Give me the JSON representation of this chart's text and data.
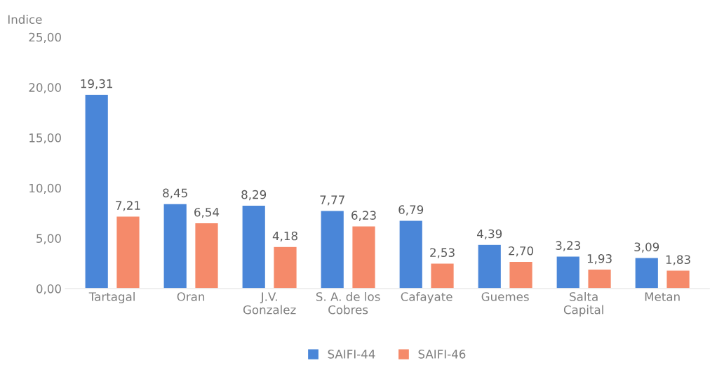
{
  "chart_data": {
    "type": "bar",
    "ylabel": "Indice",
    "categories": [
      "Tartagal",
      "Oran",
      "J.V.\nGonzalez",
      "S. A. de los\nCobres",
      "Cafayate",
      "Guemes",
      "Salta\nCapital",
      "Metan"
    ],
    "series": [
      {
        "name": "SAIFI-44",
        "color": "#4a86d8",
        "values": [
          19.31,
          8.45,
          8.29,
          7.77,
          6.79,
          4.39,
          3.23,
          3.09
        ],
        "value_labels": [
          "19,31",
          "8,45",
          "8,29",
          "7,77",
          "6,79",
          "4,39",
          "3,23",
          "3,09"
        ]
      },
      {
        "name": "SAIFI-46",
        "color": "#f58a6a",
        "values": [
          7.21,
          6.54,
          4.18,
          6.23,
          2.53,
          2.7,
          1.93,
          1.83
        ],
        "value_labels": [
          "7,21",
          "6,54",
          "4,18",
          "6,23",
          "2,53",
          "2,70",
          "1,93",
          "1,83"
        ]
      }
    ],
    "ylim": [
      0,
      25
    ],
    "yticks": [
      {
        "value": 0,
        "label": "0,00"
      },
      {
        "value": 5,
        "label": "5,00"
      },
      {
        "value": 10,
        "label": "10,00"
      },
      {
        "value": 15,
        "label": "15,00"
      },
      {
        "value": 20,
        "label": "20,00"
      },
      {
        "value": 25,
        "label": "25,00"
      }
    ],
    "grid": false,
    "legend": "bottom"
  }
}
